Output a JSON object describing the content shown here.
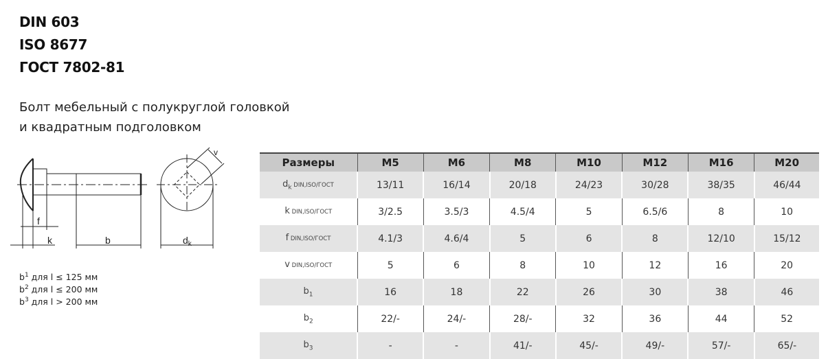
{
  "standards": [
    "DIN 603",
    "ISO 8677",
    "ГОСТ 7802-81"
  ],
  "description": [
    "Болт мебельный с полукруглой головкой",
    "и квадратным подголовком"
  ],
  "drawing_labels": {
    "f": "f",
    "k": "k",
    "b": "b",
    "dk": "d",
    "dk_sub": "k",
    "v": "v"
  },
  "notes": [
    {
      "b": "b",
      "sup": "1",
      "text": " для l ≤ 125 мм"
    },
    {
      "b": "b",
      "sup": "2",
      "text": " для l ≤ 200 мм"
    },
    {
      "b": "b",
      "sup": "3",
      "text": " для l > 200 мм"
    }
  ],
  "table": {
    "headers": [
      "Размеры",
      "M5",
      "M6",
      "M8",
      "M10",
      "M12",
      "M16",
      "M20"
    ],
    "rows": [
      {
        "label": "d",
        "sub": "k",
        "suffix": " DIN,ISO/ГОСТ",
        "values": [
          "13/11",
          "16/14",
          "20/18",
          "24/23",
          "30/28",
          "38/35",
          "46/44"
        ]
      },
      {
        "label": "k",
        "sub": "",
        "suffix": " DIN,ISO/ГОСТ",
        "values": [
          "3/2.5",
          "3.5/3",
          "4.5/4",
          "5",
          "6.5/6",
          "8",
          "10"
        ]
      },
      {
        "label": "f",
        "sub": "",
        "suffix": " DIN,ISO/ГОСТ",
        "values": [
          "4.1/3",
          "4.6/4",
          "5",
          "6",
          "8",
          "12/10",
          "15/12"
        ]
      },
      {
        "label": "v",
        "sub": "",
        "suffix": " DIN,ISO/ГОСТ",
        "values": [
          "5",
          "6",
          "8",
          "10",
          "12",
          "16",
          "20"
        ]
      },
      {
        "label": "b",
        "sub": "1",
        "suffix": "",
        "values": [
          "16",
          "18",
          "22",
          "26",
          "30",
          "38",
          "46"
        ]
      },
      {
        "label": "b",
        "sub": "2",
        "suffix": "",
        "values": [
          "22/-",
          "24/-",
          "28/-",
          "32",
          "36",
          "44",
          "52"
        ]
      },
      {
        "label": "b",
        "sub": "3",
        "suffix": "",
        "values": [
          "-",
          "-",
          "41/-",
          "45/-",
          "49/-",
          "57/-",
          "65/-"
        ]
      }
    ]
  }
}
